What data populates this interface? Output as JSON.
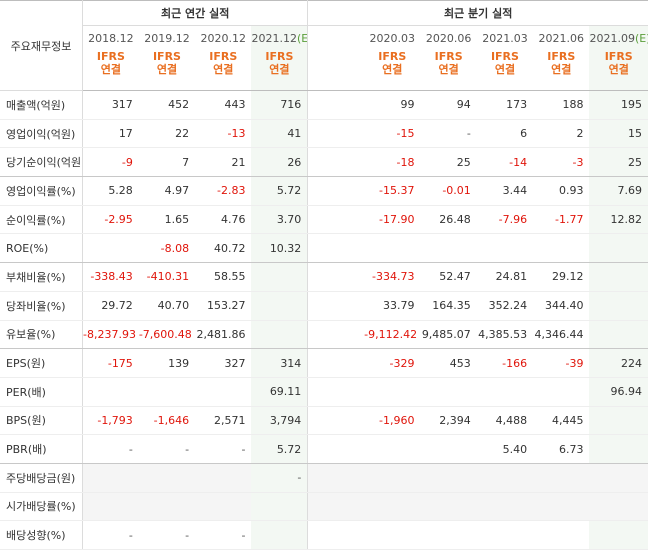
{
  "header": {
    "row_label": "주요재무정보",
    "annual_title": "최근 연간 실적",
    "quarterly_title": "최근 분기 실적",
    "annual_periods": [
      "2018.12",
      "2019.12",
      "2020.12",
      "2021.12"
    ],
    "quarterly_periods": [
      "2020.03",
      "2020.06",
      "2021.03",
      "2021.06",
      "2021.09"
    ],
    "estimate_mark": "(E)",
    "ifrs_label": "IFRS",
    "consolidated_label": "연결"
  },
  "rows": [
    {
      "label": "매출액(억원)",
      "annual": [
        "317",
        "452",
        "443",
        "716"
      ],
      "quarterly": [
        "99",
        "94",
        "173",
        "188",
        "195"
      ]
    },
    {
      "label": "영업이익(억원)",
      "annual": [
        "17",
        "22",
        "-13",
        "41"
      ],
      "quarterly": [
        "-15",
        "-",
        "6",
        "2",
        "15"
      ]
    },
    {
      "label": "당기순이익(억원)",
      "annual": [
        "-9",
        "7",
        "21",
        "26"
      ],
      "quarterly": [
        "-18",
        "25",
        "-14",
        "-3",
        "25"
      ]
    },
    {
      "label": "영업이익률(%)",
      "annual": [
        "5.28",
        "4.97",
        "-2.83",
        "5.72"
      ],
      "quarterly": [
        "-15.37",
        "-0.01",
        "3.44",
        "0.93",
        "7.69"
      ]
    },
    {
      "label": "순이익률(%)",
      "annual": [
        "-2.95",
        "1.65",
        "4.76",
        "3.70"
      ],
      "quarterly": [
        "-17.90",
        "26.48",
        "-7.96",
        "-1.77",
        "12.82"
      ]
    },
    {
      "label": "ROE(%)",
      "annual": [
        "",
        "-8.08",
        "40.72",
        "10.32"
      ],
      "quarterly": [
        "",
        "",
        "",
        "",
        ""
      ]
    },
    {
      "label": "부채비율(%)",
      "annual": [
        "-338.43",
        "-410.31",
        "58.55",
        ""
      ],
      "quarterly": [
        "-334.73",
        "52.47",
        "24.81",
        "29.12",
        ""
      ]
    },
    {
      "label": "당좌비율(%)",
      "annual": [
        "29.72",
        "40.70",
        "153.27",
        ""
      ],
      "quarterly": [
        "33.79",
        "164.35",
        "352.24",
        "344.40",
        ""
      ]
    },
    {
      "label": "유보율(%)",
      "annual": [
        "-8,237.93",
        "-7,600.48",
        "2,481.86",
        ""
      ],
      "quarterly": [
        "-9,112.42",
        "9,485.07",
        "4,385.53",
        "4,346.44",
        ""
      ]
    },
    {
      "label": "EPS(원)",
      "annual": [
        "-175",
        "139",
        "327",
        "314"
      ],
      "quarterly": [
        "-329",
        "453",
        "-166",
        "-39",
        "224"
      ]
    },
    {
      "label": "PER(배)",
      "annual": [
        "",
        "",
        "",
        "69.11"
      ],
      "quarterly": [
        "",
        "",
        "",
        "",
        "96.94"
      ]
    },
    {
      "label": "BPS(원)",
      "annual": [
        "-1,793",
        "-1,646",
        "2,571",
        "3,794"
      ],
      "quarterly": [
        "-1,960",
        "2,394",
        "4,488",
        "4,445",
        ""
      ]
    },
    {
      "label": "PBR(배)",
      "annual": [
        "-",
        "-",
        "-",
        "5.72"
      ],
      "quarterly": [
        "",
        "",
        "5.40",
        "6.73",
        ""
      ]
    },
    {
      "label": "주당배당금(원)",
      "annual": [
        "",
        "",
        "",
        "-"
      ],
      "quarterly": [
        "",
        "",
        "",
        "",
        ""
      ]
    },
    {
      "label": "시가배당률(%)",
      "annual": [
        "",
        "",
        "",
        ""
      ],
      "quarterly": [
        "",
        "",
        "",
        "",
        ""
      ]
    },
    {
      "label": "배당성향(%)",
      "annual": [
        "-",
        "-",
        "-",
        ""
      ],
      "quarterly": [
        "",
        "",
        "",
        "",
        ""
      ]
    }
  ],
  "colors": {
    "negative": "#e0150b",
    "ifrs": "#e96f21",
    "estimate_bg": "#f3f8f3",
    "estimate_mark": "#5a9e3a"
  }
}
